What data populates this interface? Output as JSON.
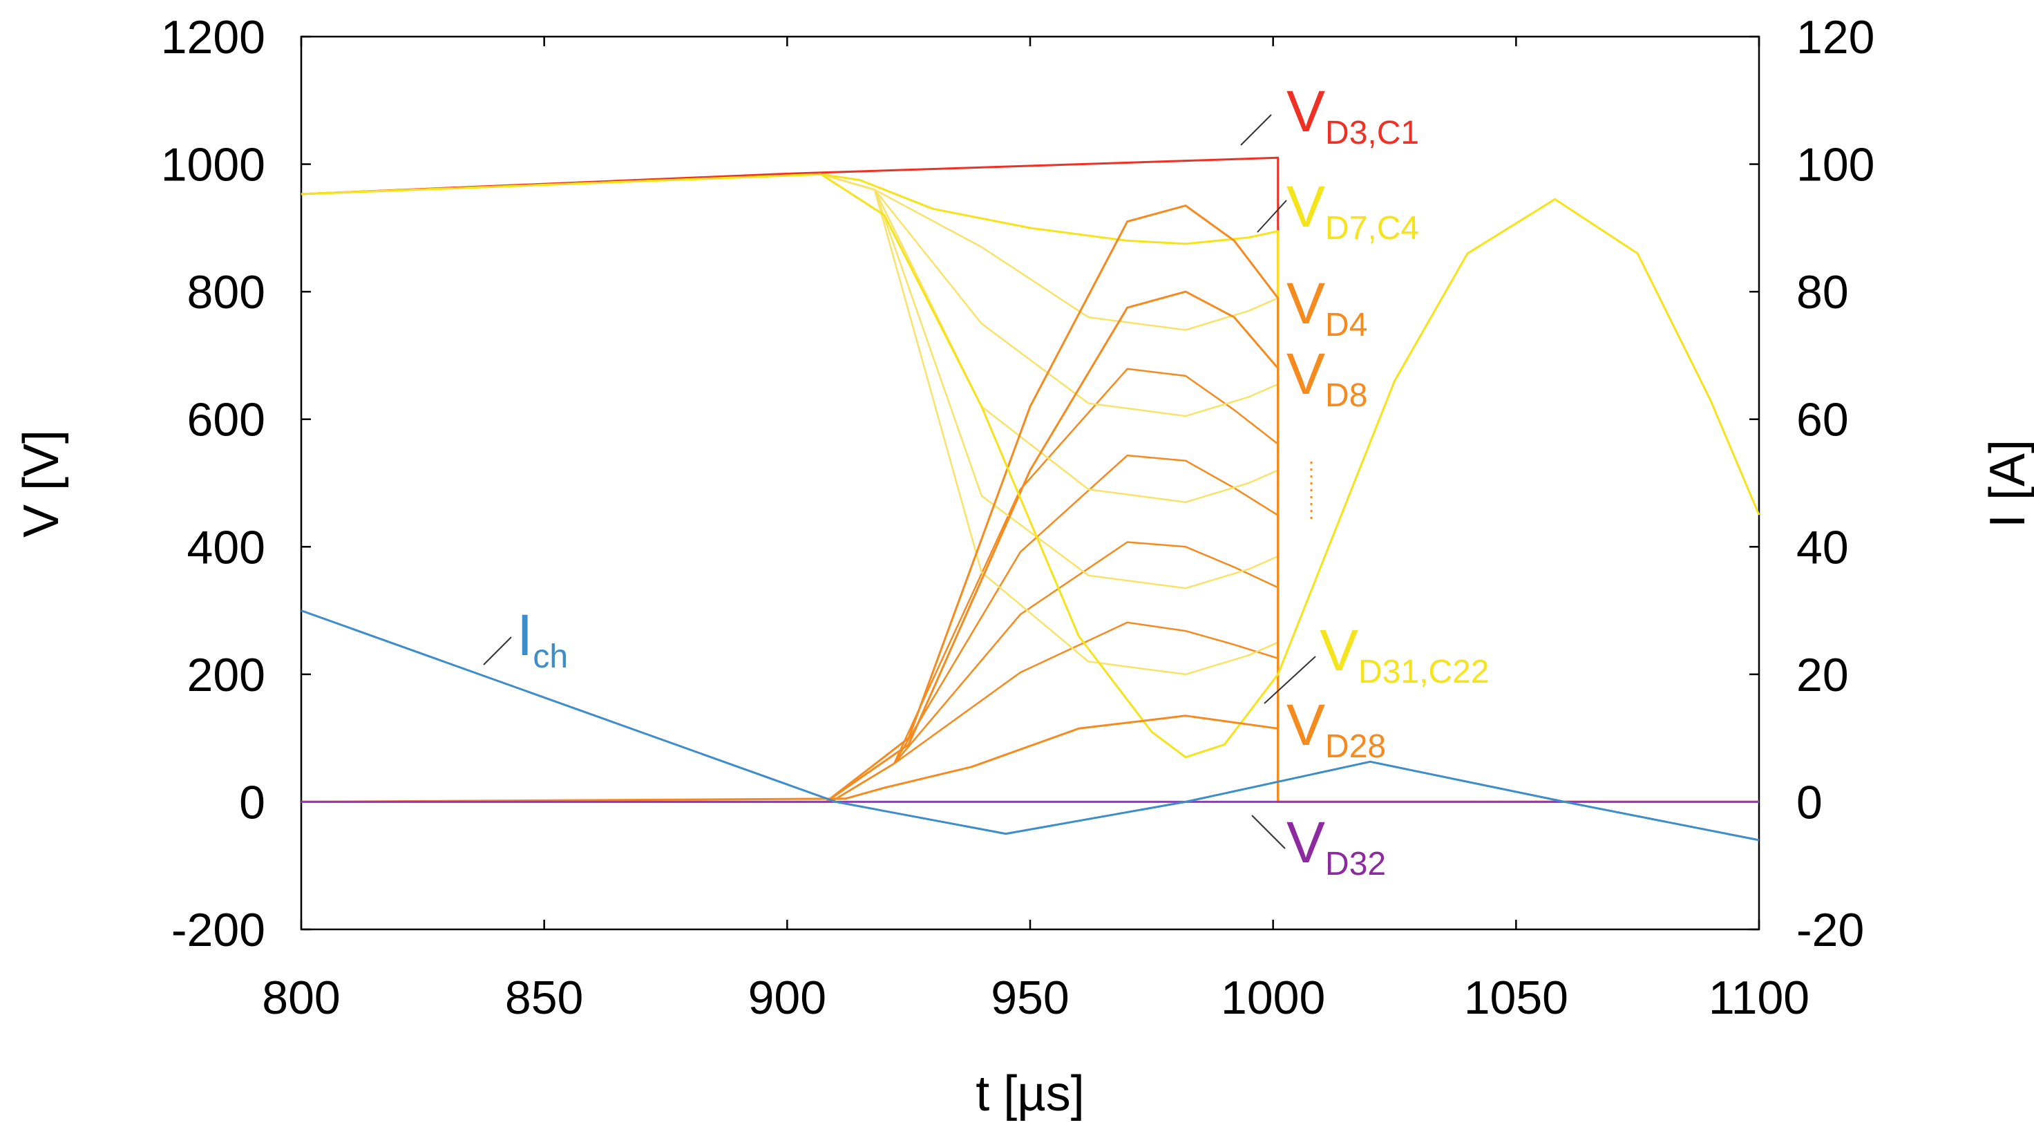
{
  "chart_data": {
    "type": "line",
    "xlabel": "t [µs]",
    "ylabel_left": "V [V]",
    "ylabel_right": "I [A]",
    "xlim": [
      800,
      1100
    ],
    "ylim_left": [
      -200,
      1200
    ],
    "ylim_right": [
      -20,
      120
    ],
    "xticks": [
      800,
      850,
      900,
      950,
      1000,
      1050,
      1100
    ],
    "yticks_left": [
      -200,
      0,
      200,
      400,
      600,
      800,
      1000,
      1200
    ],
    "yticks_right": [
      -20,
      0,
      20,
      40,
      60,
      80,
      100,
      120
    ],
    "grid": false,
    "colors": {
      "VD3_C1": "#ee3124",
      "yellow": "#f5e31c",
      "orange": "#f58a1f",
      "Ich": "#3c8dc9",
      "VD32": "#9b30d9",
      "pale_yellow": "#f8e36a",
      "mid_orange": "#f0a83a"
    },
    "series": [
      {
        "name": "VD3,C1",
        "axis": "left",
        "color": "#ee3124",
        "x": [
          800,
          900,
          1001,
          1001,
          1100
        ],
        "y": [
          953,
          985,
          1010,
          0,
          0
        ]
      },
      {
        "name": "VD7,C4",
        "axis": "left",
        "color": "#f5e31c",
        "x": [
          800,
          907,
          915,
          930,
          950,
          970,
          982,
          995,
          1001,
          1001,
          1100
        ],
        "y": [
          953,
          984,
          975,
          930,
          900,
          880,
          875,
          885,
          895,
          0,
          0
        ]
      },
      {
        "name": "VD4",
        "axis": "left",
        "color": "#f58a1f",
        "x": [
          800,
          908,
          925,
          950,
          970,
          982,
          992,
          1001,
          1001,
          1100
        ],
        "y": [
          0,
          0,
          100,
          620,
          910,
          935,
          880,
          790,
          0,
          0
        ]
      },
      {
        "name": "VD8",
        "axis": "left",
        "color": "#f58a1f",
        "x": [
          800,
          908,
          925,
          950,
          970,
          982,
          992,
          1001,
          1001,
          1100
        ],
        "y": [
          0,
          0,
          90,
          520,
          775,
          800,
          760,
          680,
          0,
          0
        ]
      },
      {
        "name": "VD31,C22",
        "axis": "left",
        "color": "#f5e31c",
        "x": [
          800,
          907,
          920,
          940,
          960,
          975,
          982,
          990,
          1001,
          1025,
          1040,
          1058,
          1075,
          1090,
          1100
        ],
        "y": [
          953,
          984,
          920,
          620,
          260,
          110,
          70,
          90,
          200,
          660,
          860,
          945,
          860,
          630,
          450
        ]
      },
      {
        "name": "VD28",
        "axis": "left",
        "color": "#f58a1f",
        "x": [
          800,
          912,
          920,
          938,
          960,
          982,
          1001,
          1001,
          1100
        ],
        "y": [
          0,
          5,
          22,
          55,
          115,
          135,
          115,
          0,
          0
        ]
      },
      {
        "name": "VD32",
        "axis": "left",
        "color": "#9b30d9",
        "x": [
          800,
          1100
        ],
        "y": [
          0,
          0
        ]
      },
      {
        "name": "Ich",
        "axis": "right",
        "color": "#3c8dc9",
        "x": [
          800,
          910,
          945,
          982,
          1020,
          1060,
          1100
        ],
        "y": [
          30,
          0,
          -5,
          0,
          6.3,
          0,
          -6
        ]
      }
    ],
    "annotations": [
      {
        "main": "V",
        "sub": "D3,C1",
        "color": "#ee3124"
      },
      {
        "main": "V",
        "sub": "D7,C4",
        "color": "#f5e31c"
      },
      {
        "main": "V",
        "sub": "D4",
        "color": "#f58a1f"
      },
      {
        "main": "V",
        "sub": "D8",
        "color": "#f58a1f"
      },
      {
        "main": "V",
        "sub": "D31,C22",
        "color": "#f5e31c"
      },
      {
        "main": "V",
        "sub": "D28",
        "color": "#f58a1f"
      },
      {
        "main": "V",
        "sub": "D32",
        "color": "#8e2aa0"
      },
      {
        "main": "I",
        "sub": "ch",
        "color": "#3c8dc9"
      }
    ]
  }
}
